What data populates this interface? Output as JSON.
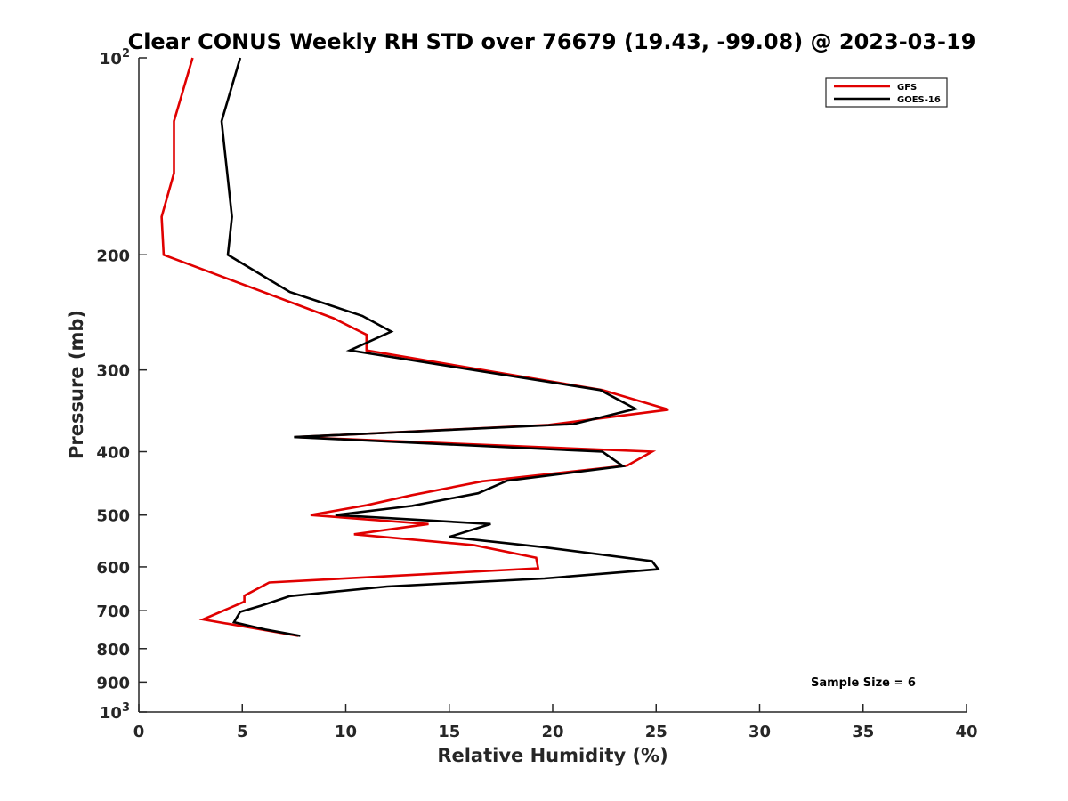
{
  "chart_data": {
    "type": "line",
    "title": "Clear CONUS Weekly RH STD over 76679 (19.43, -99.08) @ 2023-03-19",
    "xlabel": "Relative Humidity (%)",
    "ylabel": "Pressure (mb)",
    "xlim": [
      0,
      40
    ],
    "ylim": [
      100,
      1000
    ],
    "y_scale": "log",
    "y_reversed": true,
    "x_ticks": [
      "0",
      "5",
      "10",
      "15",
      "20",
      "25",
      "30",
      "35",
      "40"
    ],
    "y_ticks": [
      {
        "value": 100,
        "label": "10",
        "sup": "2"
      },
      {
        "value": 200,
        "label": "200",
        "sup": ""
      },
      {
        "value": 300,
        "label": "300",
        "sup": ""
      },
      {
        "value": 400,
        "label": "400",
        "sup": ""
      },
      {
        "value": 500,
        "label": "500",
        "sup": ""
      },
      {
        "value": 600,
        "label": "600",
        "sup": ""
      },
      {
        "value": 700,
        "label": "700",
        "sup": ""
      },
      {
        "value": 800,
        "label": "800",
        "sup": ""
      },
      {
        "value": 900,
        "label": "900",
        "sup": ""
      },
      {
        "value": 1000,
        "label": "10",
        "sup": "3"
      }
    ],
    "grid": false,
    "legend_position": "top-right",
    "annotation": "Sample Size = 6",
    "series": [
      {
        "name": "GFS",
        "color": "#e00000",
        "points": [
          [
            2.6,
            100
          ],
          [
            1.7,
            125
          ],
          [
            1.7,
            150
          ],
          [
            1.1,
            175
          ],
          [
            1.2,
            200
          ],
          [
            9.4,
            250
          ],
          [
            11.0,
            265
          ],
          [
            11.0,
            280
          ],
          [
            22.4,
            322
          ],
          [
            25.6,
            345
          ],
          [
            19.8,
            364
          ],
          [
            7.6,
            380
          ],
          [
            24.8,
            400
          ],
          [
            23.6,
            420
          ],
          [
            16.6,
            444
          ],
          [
            13.2,
            466
          ],
          [
            11.0,
            483
          ],
          [
            8.3,
            500
          ],
          [
            14.0,
            516
          ],
          [
            10.4,
            535
          ],
          [
            16.2,
            556
          ],
          [
            19.2,
            581
          ],
          [
            19.3,
            603
          ],
          [
            6.3,
            634
          ],
          [
            5.1,
            664
          ],
          [
            5.1,
            678
          ],
          [
            3.1,
            722
          ],
          [
            7.7,
            765
          ]
        ]
      },
      {
        "name": "GOES-16",
        "color": "#000000",
        "points": [
          [
            4.9,
            100
          ],
          [
            4.0,
            125
          ],
          [
            4.5,
            175
          ],
          [
            4.3,
            200
          ],
          [
            7.3,
            228
          ],
          [
            10.8,
            248
          ],
          [
            12.2,
            262
          ],
          [
            10.2,
            280
          ],
          [
            22.3,
            322
          ],
          [
            24.0,
            344
          ],
          [
            21.0,
            363
          ],
          [
            7.5,
            380
          ],
          [
            22.4,
            400
          ],
          [
            23.4,
            421
          ],
          [
            17.8,
            443
          ],
          [
            16.4,
            463
          ],
          [
            13.2,
            484
          ],
          [
            9.5,
            500
          ],
          [
            17.0,
            516
          ],
          [
            15.0,
            540
          ],
          [
            19.6,
            560
          ],
          [
            24.8,
            588
          ],
          [
            25.1,
            605
          ],
          [
            19.6,
            625
          ],
          [
            12.0,
            643
          ],
          [
            7.3,
            665
          ],
          [
            5.9,
            688
          ],
          [
            4.9,
            703
          ],
          [
            4.6,
            729
          ],
          [
            6.1,
            748
          ],
          [
            7.8,
            765
          ]
        ]
      }
    ]
  }
}
